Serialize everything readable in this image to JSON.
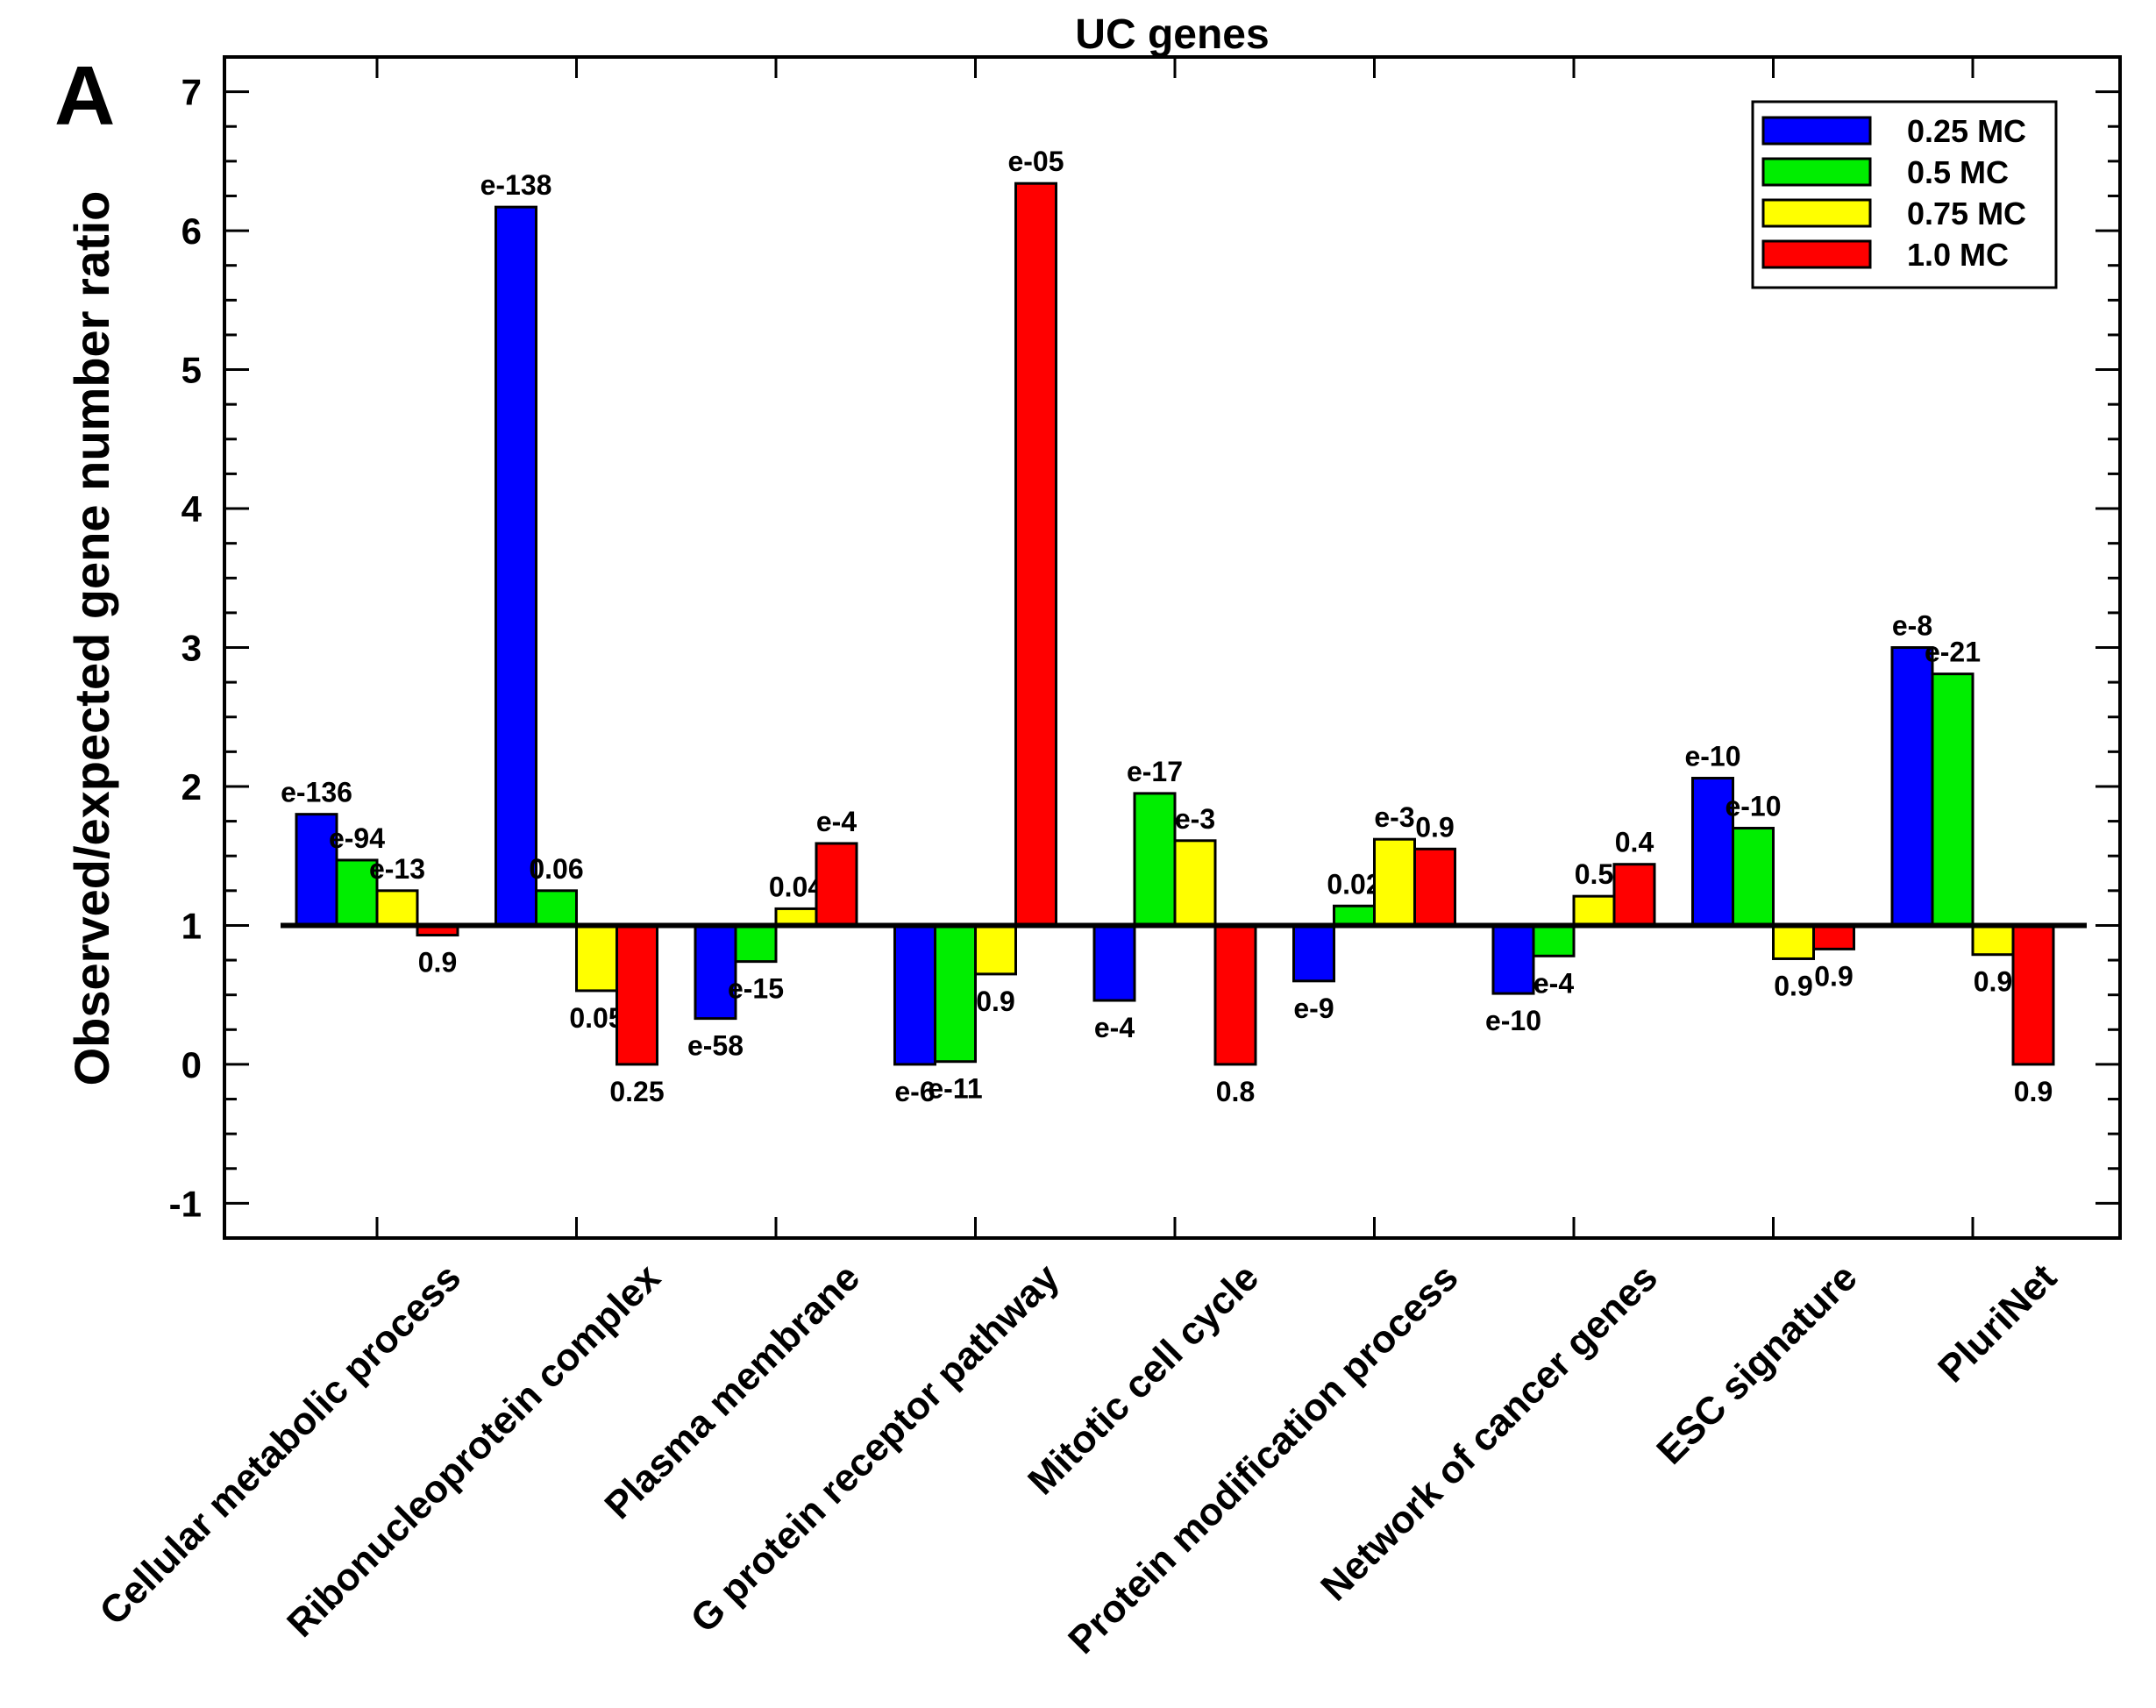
{
  "chart_data": {
    "type": "bar",
    "panel_label": "A",
    "title": "UC genes",
    "xlabel": "",
    "ylabel": "Observed/expected gene number ratio",
    "ylim": [
      -1.25,
      7.25
    ],
    "yticks": [
      -1,
      0,
      1,
      2,
      3,
      4,
      5,
      6,
      7
    ],
    "baseline": 1,
    "legend_position": "top-right",
    "categories": [
      "Cellular metabolic process",
      "Ribonucleoprotein complex",
      "Plasma membrane",
      "G protein receptor pathway",
      "Mitotic cell cycle",
      "Protein modification process",
      "Network of cancer genes",
      "ESC signature",
      "PluriNet"
    ],
    "series": [
      {
        "name": "0.25 MC",
        "color": "#0000ff",
        "values": [
          1.8,
          6.17,
          0.33,
          0.0,
          0.46,
          0.6,
          0.51,
          2.06,
          3.0
        ],
        "labels": [
          "e-136",
          "e-138",
          "e-58",
          "e-6",
          "e-4",
          "e-9",
          "e-10",
          "e-10",
          "e-8"
        ]
      },
      {
        "name": "0.5 MC",
        "color": "#00ee00",
        "values": [
          1.47,
          1.25,
          0.74,
          0.02,
          1.95,
          1.14,
          0.78,
          1.7,
          2.81
        ],
        "labels": [
          "e-94",
          "0.06",
          "e-15",
          "e-11",
          "e-17",
          "0.02",
          "e-4",
          "e-10",
          "e-21"
        ]
      },
      {
        "name": "0.75 MC",
        "color": "#ffff00",
        "values": [
          1.25,
          0.53,
          1.12,
          0.65,
          1.61,
          1.62,
          1.21,
          0.76,
          0.79
        ],
        "labels": [
          "e-13",
          "0.05",
          "0.04",
          "0.9",
          "e-3",
          "e-3",
          "0.5",
          "0.9",
          "0.9"
        ]
      },
      {
        "name": "1.0 MC",
        "color": "#ff0000",
        "values": [
          0.93,
          0.0,
          1.59,
          6.34,
          0.0,
          1.55,
          1.44,
          0.83,
          0.0
        ],
        "labels": [
          "0.9",
          "0.25",
          "e-4",
          "e-05",
          "0.8",
          "0.9",
          "0.4",
          "0.9",
          "0.9"
        ]
      }
    ]
  }
}
